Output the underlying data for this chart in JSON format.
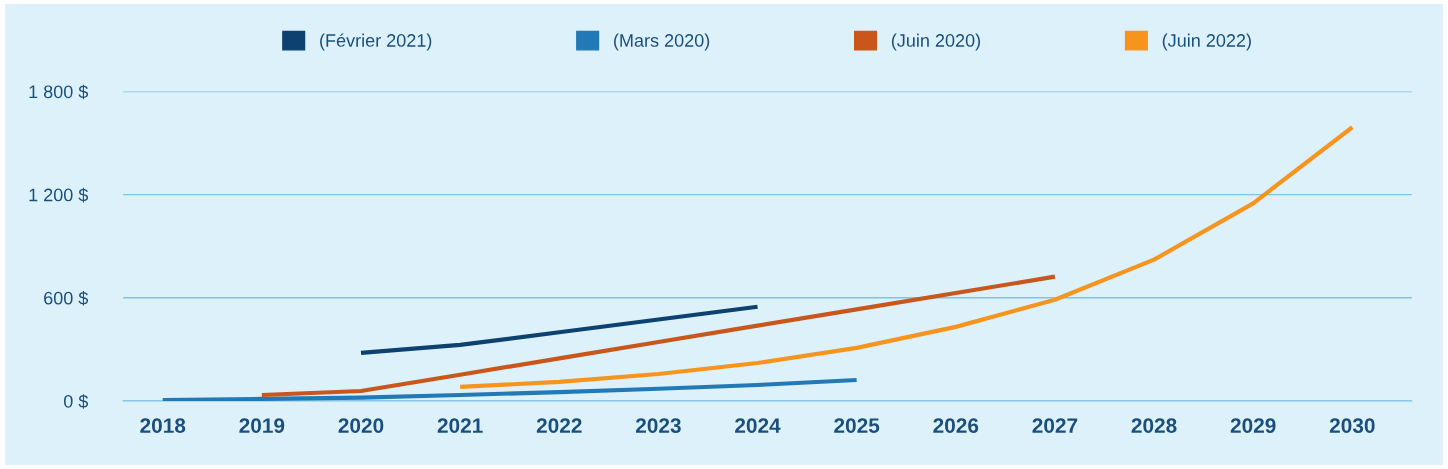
{
  "chart_data": {
    "type": "line",
    "x": [
      2018,
      2019,
      2020,
      2021,
      2022,
      2023,
      2024,
      2025,
      2026,
      2027,
      2028,
      2029,
      2030
    ],
    "series": [
      {
        "name": "(Février 2021)",
        "color": "#0d416f",
        "values": [
          null,
          null,
          280,
          326,
          400,
          474,
          548,
          null,
          null,
          null,
          null,
          null,
          null
        ]
      },
      {
        "name": "(Mars 2020)",
        "color": "#2379b6",
        "values": [
          5,
          12,
          20,
          35,
          52,
          71,
          93,
          122,
          null,
          null,
          null,
          null,
          null
        ]
      },
      {
        "name": "(Juin 2020)",
        "color": "#c9561b",
        "values": [
          null,
          35,
          58,
          153,
          248,
          343,
          438,
          533,
          628,
          723,
          null,
          null,
          null
        ]
      },
      {
        "name": "(Juin 2022)",
        "color": "#f7941d",
        "values": [
          null,
          null,
          null,
          82,
          111,
          157,
          221,
          309,
          431,
          589,
          822,
          1149,
          1592
        ]
      }
    ],
    "xlim": [
      2017.6,
      2030.6
    ],
    "xticks": [
      2018,
      2019,
      2020,
      2021,
      2022,
      2023,
      2024,
      2025,
      2026,
      2027,
      2028,
      2029,
      2030
    ],
    "ylim": [
      0,
      1800
    ],
    "yticks": [
      {
        "value": 0,
        "label": "0 $"
      },
      {
        "value": 600,
        "label": "600 $"
      },
      {
        "value": 1200,
        "label": "1 200 $"
      },
      {
        "value": 1800,
        "label": "1 800 $"
      }
    ],
    "grid": "y",
    "legend": "top",
    "marker": "none",
    "line_style": "solid"
  }
}
